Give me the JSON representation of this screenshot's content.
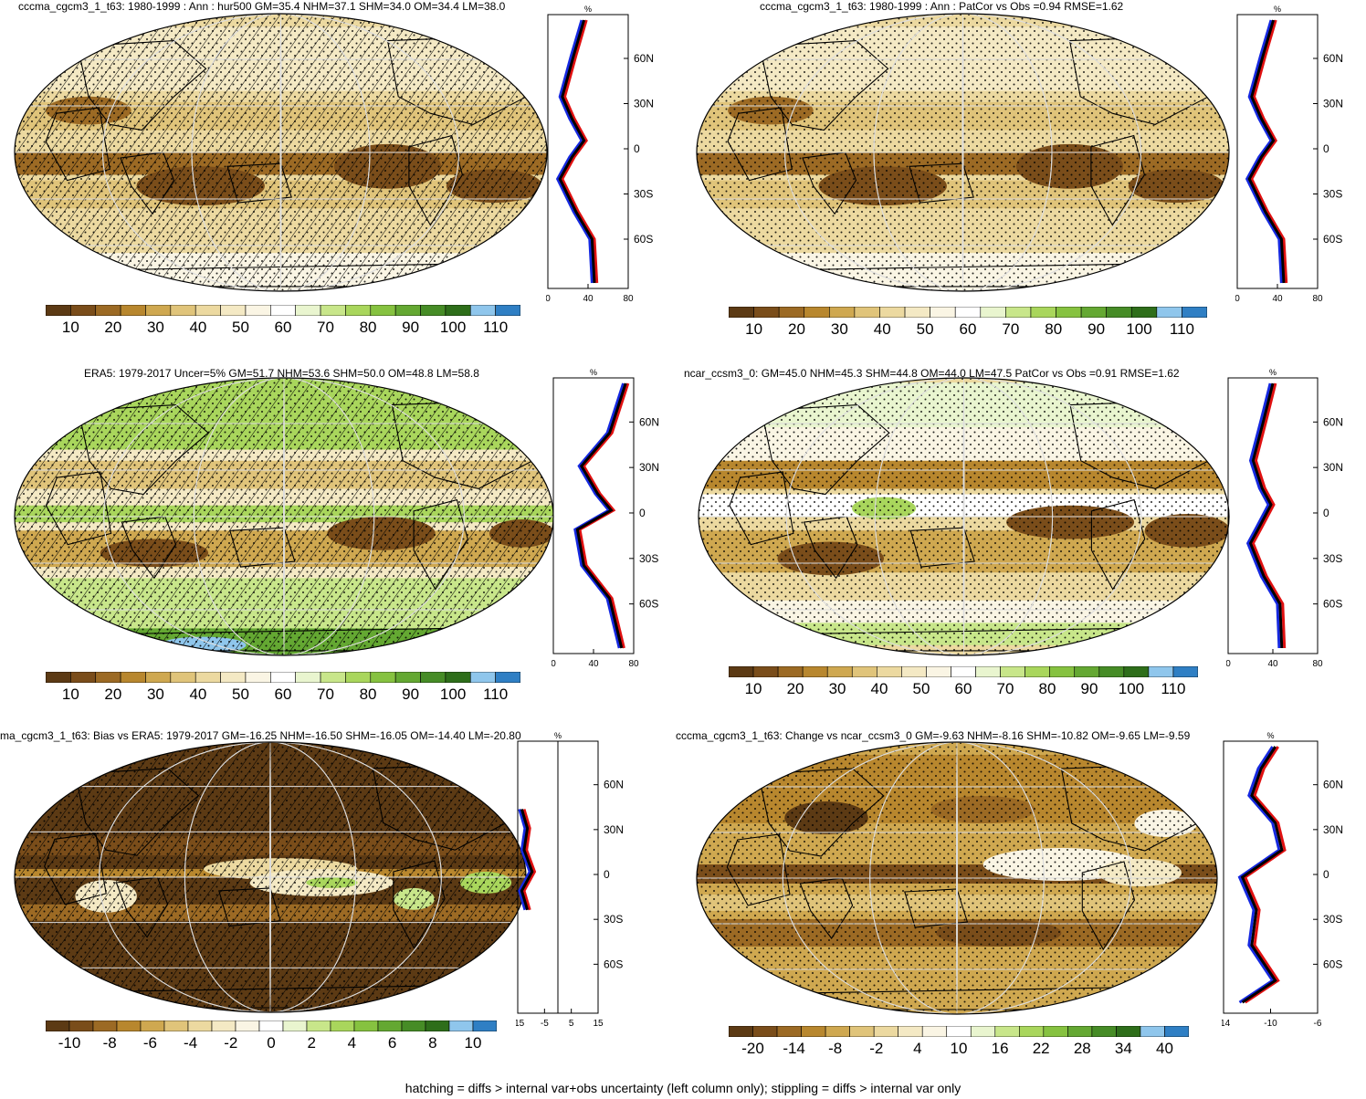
{
  "panels": [
    {
      "title": "cccma_cgcm3_1_t63: 1980-1999 : Ann : hur500 GM=35.4 NHM=37.1 SHM=34.0 OM=34.4 LM=38.0",
      "hatched": true,
      "stippled": true,
      "scheme": "abs",
      "zonal": {
        "unit": "%",
        "lat_ticks": [
          "60N",
          "30N",
          "0",
          "30S",
          "60S"
        ],
        "x_ticks": [
          "0",
          "40",
          "80"
        ]
      },
      "colorbar": [
        "10",
        "20",
        "30",
        "40",
        "50",
        "60",
        "70",
        "80",
        "90",
        "100",
        "110"
      ]
    },
    {
      "title": "cccma_cgcm3_1_t63: 1980-1999 : Ann : PatCor vs Obs =0.94 RMSE=1.62",
      "hatched": false,
      "stippled": true,
      "scheme": "abs",
      "zonal": {
        "unit": "%",
        "lat_ticks": [
          "60N",
          "30N",
          "0",
          "30S",
          "60S"
        ],
        "x_ticks": [
          "0",
          "40",
          "80"
        ]
      },
      "colorbar": [
        "10",
        "20",
        "30",
        "40",
        "50",
        "60",
        "70",
        "80",
        "90",
        "100",
        "110"
      ]
    },
    {
      "title": "ERA5: 1979-2017 Uncer=5% GM=51.7 NHM=53.6 SHM=50.0 OM=48.8 LM=58.8",
      "hatched": true,
      "stippled": true,
      "scheme": "obs",
      "zonal": {
        "unit": "%",
        "lat_ticks": [
          "60N",
          "30N",
          "0",
          "30S",
          "60S"
        ],
        "x_ticks": [
          "0",
          "40",
          "80"
        ]
      },
      "colorbar": [
        "10",
        "20",
        "30",
        "40",
        "50",
        "60",
        "70",
        "80",
        "90",
        "100",
        "110"
      ]
    },
    {
      "title": "ncar_ccsm3_0: GM=45.0 NHM=45.3 SHM=44.8 OM=44.0 LM=47.5 PatCor vs Obs =0.91 RMSE=1.62",
      "hatched": false,
      "stippled": true,
      "scheme": "abs2",
      "zonal": {
        "unit": "%",
        "lat_ticks": [
          "60N",
          "30N",
          "0",
          "30S",
          "60S"
        ],
        "x_ticks": [
          "0",
          "40",
          "80"
        ]
      },
      "colorbar": [
        "10",
        "20",
        "30",
        "40",
        "50",
        "60",
        "70",
        "80",
        "90",
        "100",
        "110"
      ]
    },
    {
      "title": "ma_cgcm3_1_t63: Bias vs ERA5: 1979-2017 GM=-16.25 NHM=-16.50 SHM=-16.05 OM=-14.40 LM=-20.80",
      "hatched": true,
      "stippled": true,
      "scheme": "bias",
      "zonal": {
        "unit": "%",
        "lat_ticks": [
          "60N",
          "30N",
          "0",
          "30S",
          "60S"
        ],
        "x_ticks": [
          "-15",
          "-5",
          "5",
          "15"
        ]
      },
      "colorbar": [
        "-10",
        "-8",
        "-6",
        "-4",
        "-2",
        "0",
        "2",
        "4",
        "6",
        "8",
        "10"
      ]
    },
    {
      "title": "cccma_cgcm3_1_t63: Change vs ncar_ccsm3_0 GM=-9.63 NHM=-8.16 SHM=-10.82 OM=-9.65 LM=-9.59",
      "hatched": false,
      "stippled": true,
      "scheme": "change",
      "zonal": {
        "unit": "%",
        "lat_ticks": [
          "60N",
          "30N",
          "0",
          "30S",
          "60S"
        ],
        "x_ticks": [
          "-14",
          "-10",
          "-6"
        ]
      },
      "colorbar": [
        "-20",
        "-14",
        "-8",
        "-2",
        "4",
        "10",
        "16",
        "22",
        "28",
        "34",
        "40"
      ]
    }
  ],
  "colors": {
    "palette": [
      "#5c3a14",
      "#7a4d1a",
      "#9c6a24",
      "#b8872e",
      "#cfa850",
      "#e0c47a",
      "#ecd9a0",
      "#f4e9c4",
      "#faf5e4",
      "#ffffff",
      "#e9f5cf",
      "#c8e68a",
      "#a9d65c",
      "#86c240",
      "#64a832",
      "#468c26",
      "#2e6e1a",
      "#8fc6ec",
      "#2f7fc4"
    ],
    "series": {
      "model": "#e01010",
      "obs": "#1528e0",
      "other": "#000000"
    }
  },
  "footer": "hatching = diffs > internal var+obs uncertainty (left column only); stippling = diffs > internal var only"
}
